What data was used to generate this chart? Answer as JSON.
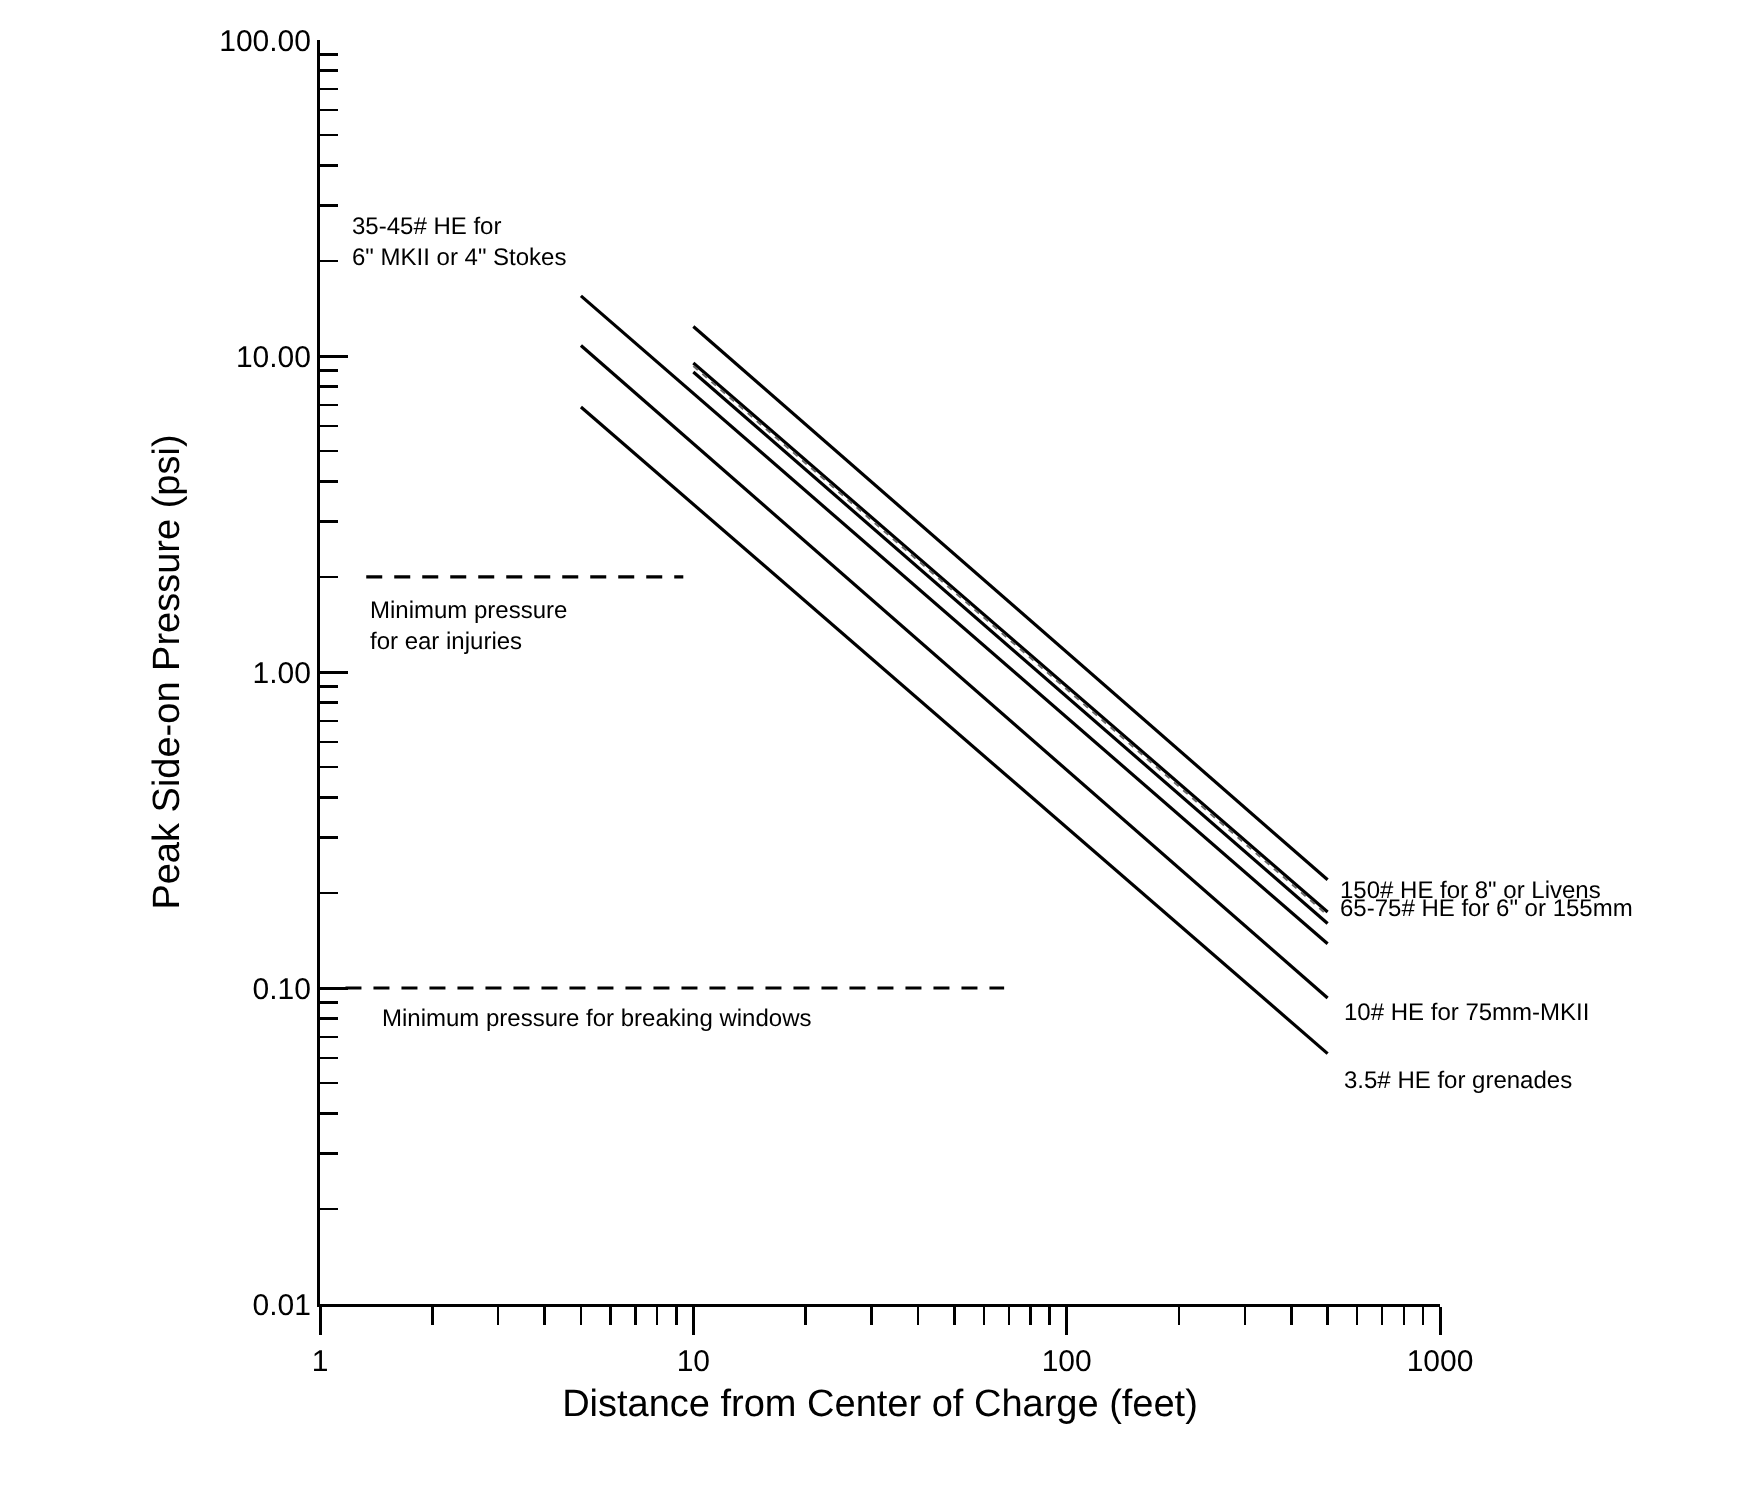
{
  "chart_data": {
    "type": "line",
    "xlabel": "Distance from Center of Charge (feet)",
    "ylabel": "Peak Side-on Pressure (psi)",
    "log": "xy",
    "grid": false,
    "marker": "none",
    "line_style": "solid",
    "xlim": [
      1,
      1000
    ],
    "ylim": [
      0.01,
      100
    ],
    "xticks": [
      1,
      {
        "value": 2,
        "label": null
      },
      {
        "value": 3,
        "label": null
      },
      {
        "value": 4,
        "label": null
      },
      {
        "value": 5,
        "label": null
      },
      {
        "value": 6,
        "label": null
      },
      {
        "value": 7,
        "label": null
      },
      {
        "value": 8,
        "label": null
      },
      {
        "value": 9,
        "label": null
      },
      10,
      {
        "value": 20,
        "label": null
      },
      {
        "value": 30,
        "label": null
      },
      {
        "value": 40,
        "label": null
      },
      {
        "value": 50,
        "label": null
      },
      {
        "value": 60,
        "label": null
      },
      {
        "value": 70,
        "label": null
      },
      {
        "value": 80,
        "label": null
      },
      {
        "value": 90,
        "label": null
      },
      100,
      {
        "value": 200,
        "label": null
      },
      {
        "value": 300,
        "label": null
      },
      {
        "value": 400,
        "label": null
      },
      {
        "value": 500,
        "label": null
      },
      {
        "value": 600,
        "label": null
      },
      {
        "value": 700,
        "label": null
      },
      {
        "value": 800,
        "label": null
      },
      {
        "value": 900,
        "label": null
      },
      1000
    ],
    "yticks": [
      {
        "value": 0.01,
        "label": "0.01"
      },
      {
        "value": 0.02,
        "label": null
      },
      {
        "value": 0.03,
        "label": null
      },
      {
        "value": 0.04,
        "label": null
      },
      {
        "value": 0.05,
        "label": null
      },
      {
        "value": 0.06,
        "label": null
      },
      {
        "value": 0.07,
        "label": null
      },
      {
        "value": 0.08,
        "label": null
      },
      {
        "value": 0.09,
        "label": null
      },
      {
        "value": 0.1,
        "label": "0.10"
      },
      {
        "value": 0.2,
        "label": null
      },
      {
        "value": 0.3,
        "label": null
      },
      {
        "value": 0.4,
        "label": null
      },
      {
        "value": 0.5,
        "label": null
      },
      {
        "value": 0.6,
        "label": null
      },
      {
        "value": 0.7,
        "label": null
      },
      {
        "value": 0.8,
        "label": null
      },
      {
        "value": 0.9,
        "label": null
      },
      {
        "value": 1,
        "label": "1.00"
      },
      {
        "value": 2,
        "label": null
      },
      {
        "value": 3,
        "label": null
      },
      {
        "value": 4,
        "label": null
      },
      {
        "value": 5,
        "label": null
      },
      {
        "value": 6,
        "label": null
      },
      {
        "value": 7,
        "label": null
      },
      {
        "value": 8,
        "label": null
      },
      {
        "value": 9,
        "label": null
      },
      {
        "value": 10,
        "label": "10.00"
      },
      {
        "value": 20,
        "label": null
      },
      {
        "value": 30,
        "label": null
      },
      {
        "value": 40,
        "label": null
      },
      {
        "value": 50,
        "label": null
      },
      {
        "value": 60,
        "label": null
      },
      {
        "value": 70,
        "label": null
      },
      {
        "value": 80,
        "label": null
      },
      {
        "value": 90,
        "label": null
      },
      {
        "value": 100,
        "label": "100.00"
      }
    ],
    "series": [
      {
        "color": "#000000",
        "x": [
          10,
          500
        ],
        "values": [
          12.4,
          0.22
        ]
      },
      {
        "color": "#000000",
        "x": [
          10,
          500
        ],
        "values": [
          9.5,
          0.174
        ]
      },
      {
        "color": "#666666",
        "line_style": "dotted",
        "x": [
          10,
          500
        ],
        "values": [
          9.3,
          0.17
        ]
      },
      {
        "color": "#000000",
        "x": [
          10,
          500
        ],
        "values": [
          8.9,
          0.16
        ]
      },
      {
        "color": "#000000",
        "x": [
          5,
          500
        ],
        "values": [
          15.5,
          0.138
        ]
      },
      {
        "color": "#000000",
        "x": [
          5,
          500
        ],
        "values": [
          10.8,
          0.093
        ]
      },
      {
        "color": "#000000",
        "x": [
          5,
          500
        ],
        "values": [
          6.9,
          0.062
        ]
      },
      {
        "color": "#000000",
        "line_style": "dashed",
        "x": [
          1.33,
          9.4
        ],
        "values": [
          2,
          2
        ]
      },
      {
        "color": "#000000",
        "line_style": "dashed",
        "x": [
          1.17,
          68
        ],
        "values": [
          0.1,
          0.1
        ]
      }
    ],
    "annotations": [
      {
        "text": "35-45# HE for\n6\" MKII or 4\" Stokes",
        "x": 5,
        "y": 15.5
      },
      {
        "text": "150# HE for 8\" or Livens",
        "x": 500,
        "y": 0.22
      },
      {
        "text": "65-75# HE for 6\" or 155mm",
        "x": 500,
        "y": 0.174
      },
      {
        "text": "10# HE for 75mm-MKII",
        "x": 500,
        "y": 0.093
      },
      {
        "text": "3.5# HE for grenades",
        "x": 500,
        "y": 0.062
      },
      {
        "text": "Minimum pressure\nfor ear injuries",
        "x": 1.33,
        "y": 2
      },
      {
        "text": "Minimum pressure for breaking windows",
        "x": 1.17,
        "y": 0.1
      }
    ]
  }
}
